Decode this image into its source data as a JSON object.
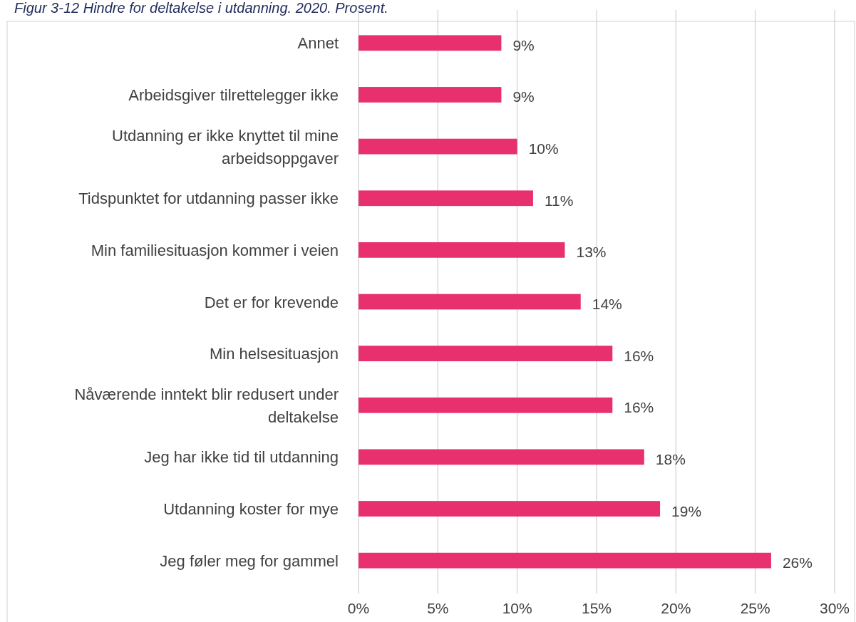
{
  "chart_data": {
    "type": "bar",
    "orientation": "horizontal",
    "title": "Figur 3-12 Hindre for deltakelse i utdanning. 2020. Prosent.",
    "categories": [
      "Annet",
      "Arbeidsgiver tilrettelegger ikke",
      "Utdanning er ikke knyttet til mine arbeidsoppgaver",
      "Tidspunktet for utdanning passer ikke",
      "Min familiesituasjon kommer i veien",
      "Det er for krevende",
      "Min helsesituasjon",
      "Nåværende inntekt blir redusert under deltakelse",
      "Jeg har ikke tid til utdanning",
      "Utdanning koster for mye",
      "Jeg føler meg for gammel"
    ],
    "values": [
      9,
      9,
      10,
      11,
      13,
      14,
      16,
      16,
      18,
      19,
      26
    ],
    "value_labels": [
      "9%",
      "9%",
      "10%",
      "11%",
      "13%",
      "14%",
      "16%",
      "16%",
      "18%",
      "19%",
      "26%"
    ],
    "color": "#e8306f",
    "xlim": [
      0,
      30
    ],
    "xticks": [
      {
        "value": 0,
        "label": "0%"
      },
      {
        "value": 5,
        "label": "5%"
      },
      {
        "value": 10,
        "label": "10%"
      },
      {
        "value": 15,
        "label": "15%"
      },
      {
        "value": 20,
        "label": "20%"
      },
      {
        "value": 25,
        "label": "25%"
      },
      {
        "value": 30,
        "label": "30%"
      }
    ],
    "grid": "x"
  }
}
